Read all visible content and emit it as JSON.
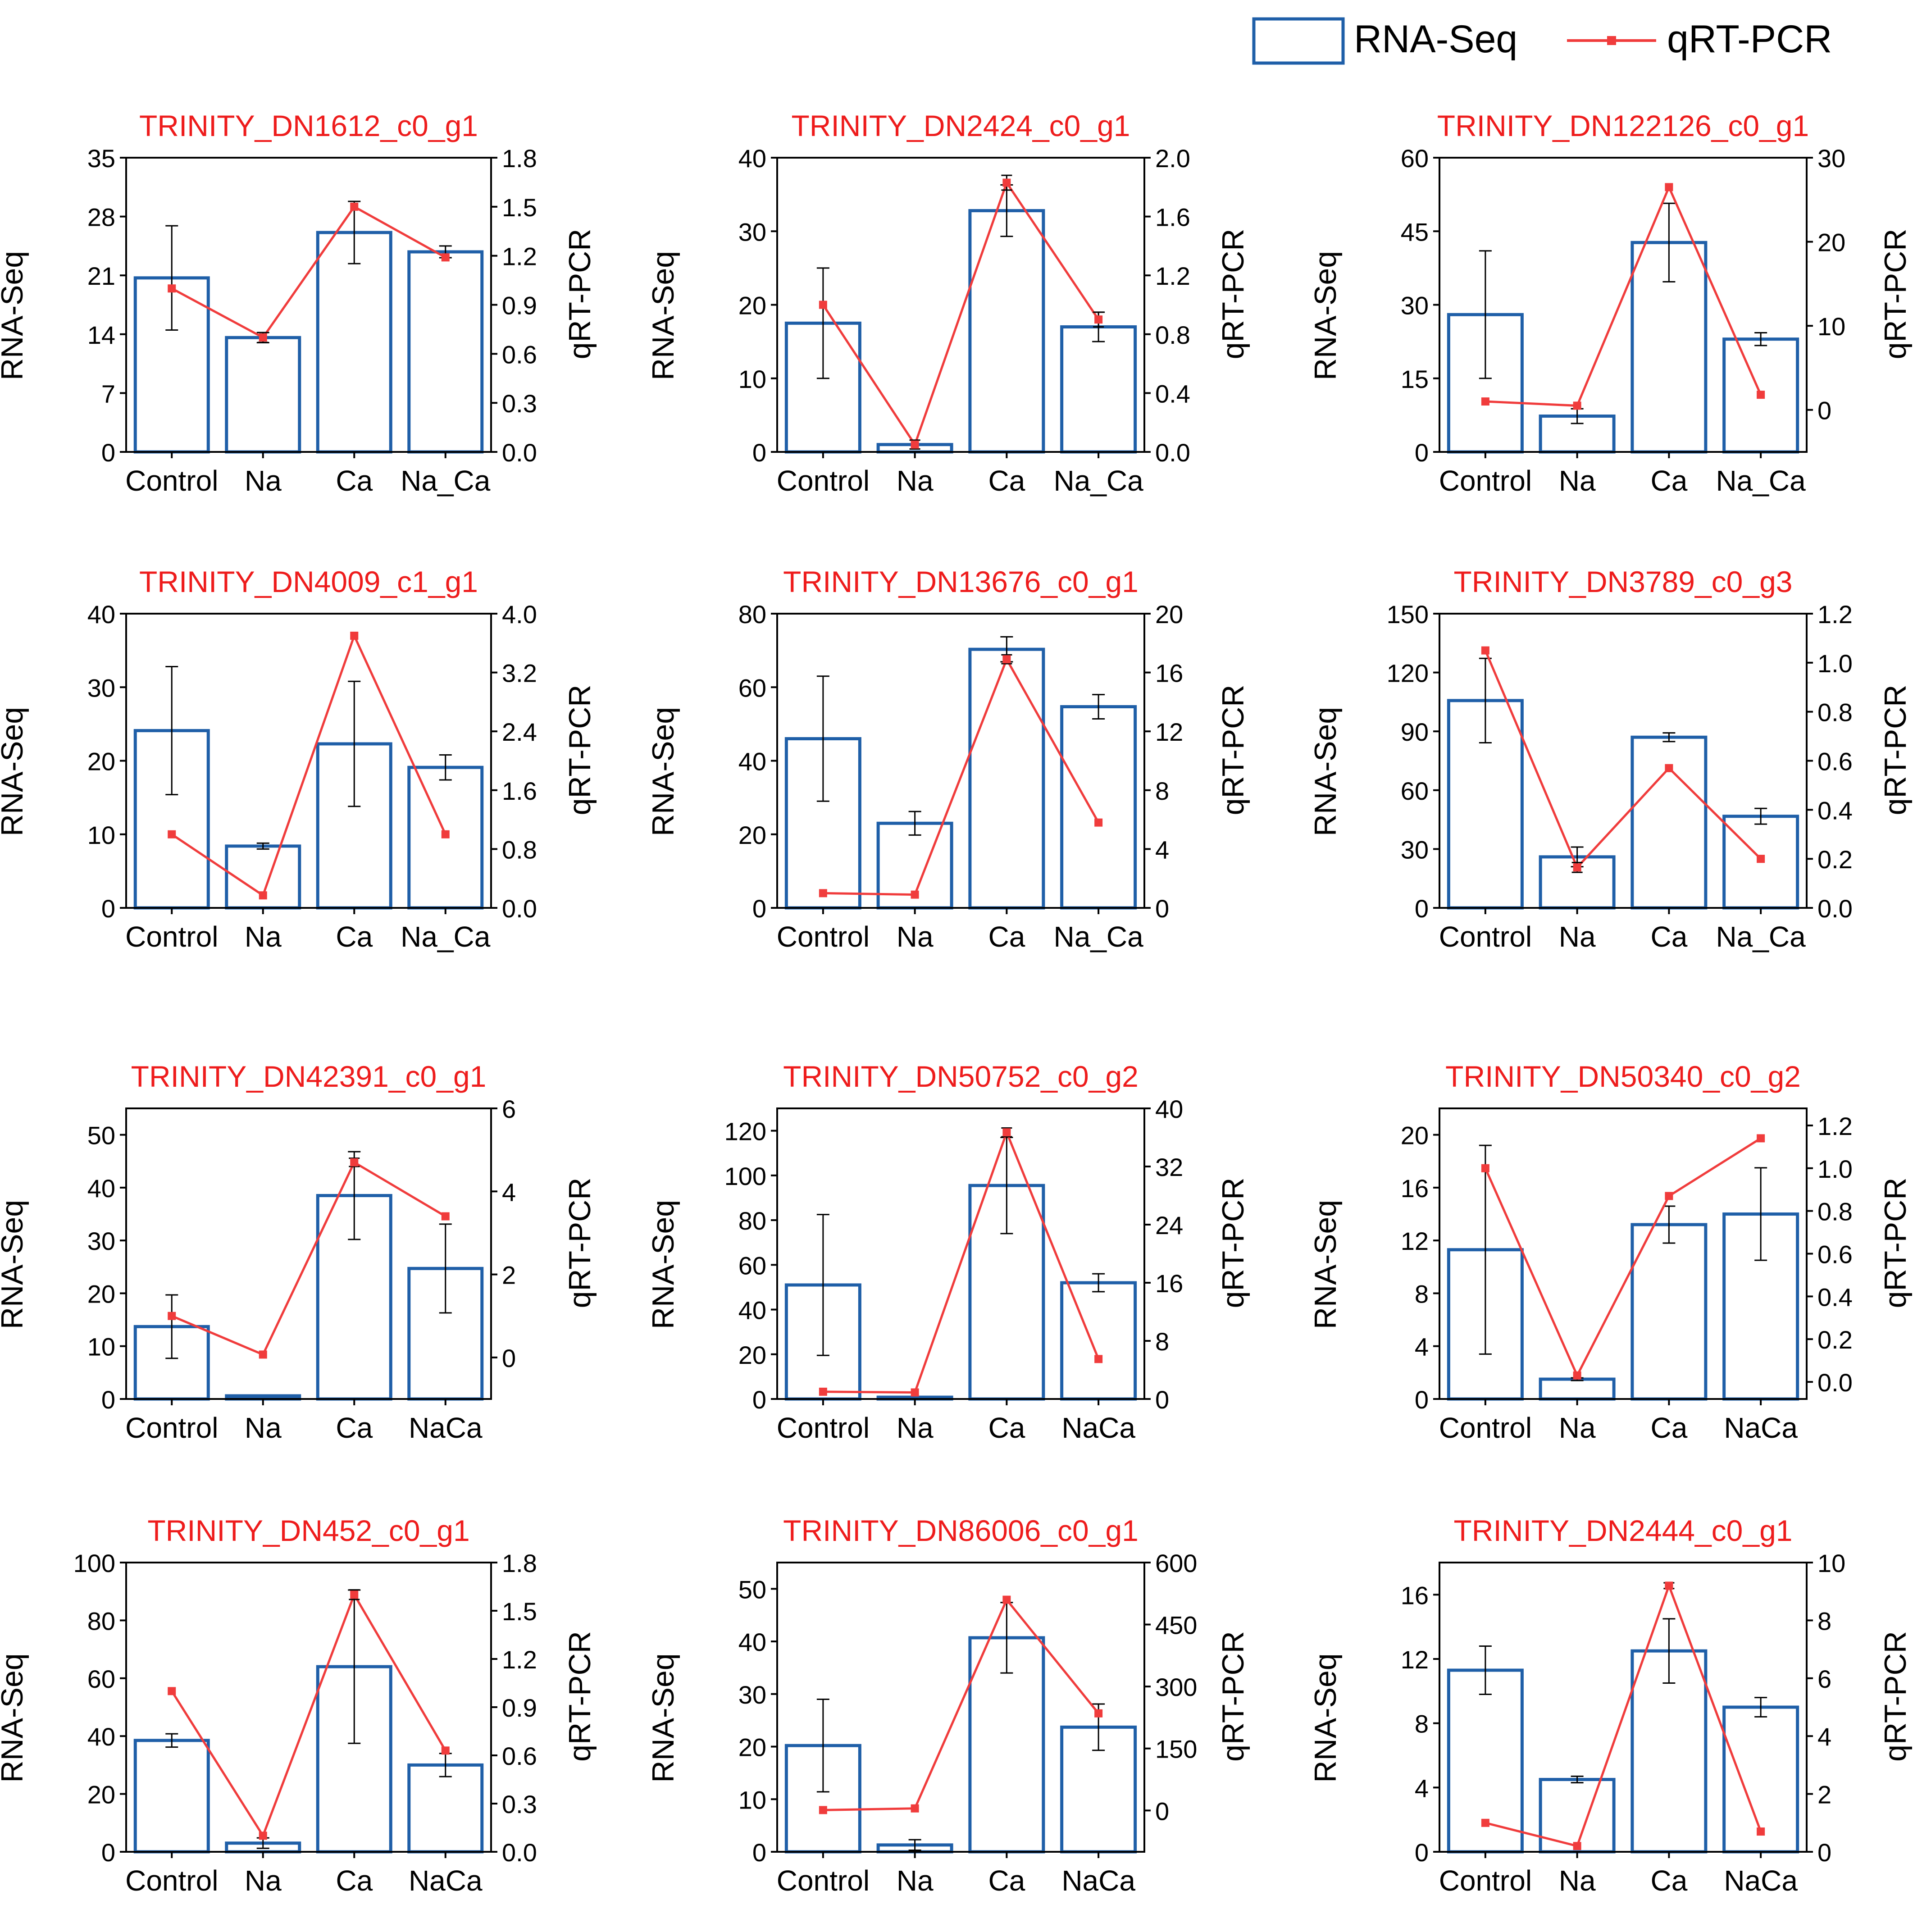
{
  "legend": {
    "bar_label": "RNA-Seq",
    "line_label": "qRT-PCR"
  },
  "colors": {
    "bar_stroke": "#1f5fa8",
    "line": "#f03c3c",
    "title": "#ee1c1c",
    "axis": "#000000"
  },
  "chart_data": [
    {
      "type": "bar+line",
      "title": "TRINITY_DN1612_c0_g1",
      "categories": [
        "Control",
        "Na",
        "Ca",
        "Na_Ca"
      ],
      "y_left": {
        "label": "RNA-Seq",
        "range": [
          0,
          35
        ],
        "ticks": [
          "0",
          "7",
          "14",
          "21",
          "28",
          "35"
        ]
      },
      "y_right": {
        "label": "qRT-PCR",
        "range": [
          0,
          1.8
        ],
        "ticks": [
          "0.0",
          "0.3",
          "0.6",
          "0.9",
          "1.2",
          "1.5",
          "1.8"
        ]
      },
      "rnaseq": {
        "values": [
          20.7,
          13.6,
          26.1,
          23.8
        ],
        "errors": [
          6.2,
          0.6,
          3.7,
          0.7
        ]
      },
      "qrtpcr": {
        "values": [
          1.0,
          0.7,
          1.5,
          1.19
        ],
        "errors": [
          0,
          0.03,
          0,
          0
        ]
      }
    },
    {
      "type": "bar+line",
      "title": "TRINITY_DN2424_c0_g1",
      "categories": [
        "Control",
        "Na",
        "Ca",
        "Na_Ca"
      ],
      "y_left": {
        "label": "RNA-Seq",
        "range": [
          0,
          40
        ],
        "ticks": [
          "0",
          "10",
          "20",
          "30",
          "40"
        ]
      },
      "y_right": {
        "label": "qRT-PCR",
        "range": [
          0,
          2.0
        ],
        "ticks": [
          "0.0",
          "0.4",
          "0.8",
          "1.2",
          "1.6",
          "2.0"
        ]
      },
      "rnaseq": {
        "values": [
          17.5,
          1.0,
          32.8,
          17.0
        ],
        "errors": [
          7.5,
          0,
          3.5,
          2.0
        ]
      },
      "qrtpcr": {
        "values": [
          1.0,
          0.05,
          1.83,
          0.9
        ],
        "errors": [
          0,
          0.03,
          0.05,
          0.05
        ]
      }
    },
    {
      "type": "bar+line",
      "title": "TRINITY_DN122126_c0_g1",
      "categories": [
        "Control",
        "Na",
        "Ca",
        "Na_Ca"
      ],
      "y_left": {
        "label": "RNA-Seq",
        "range": [
          0,
          60
        ],
        "ticks": [
          "0",
          "15",
          "30",
          "45",
          "60"
        ]
      },
      "y_right": {
        "label": "qRT-PCR",
        "range": [
          -5,
          30
        ],
        "ticks": [
          "0",
          "10",
          "20",
          "30"
        ]
      },
      "rnaseq": {
        "values": [
          28.0,
          7.3,
          42.7,
          23.0
        ],
        "errors": [
          13,
          1.5,
          8,
          1.3
        ]
      },
      "qrtpcr": {
        "values": [
          1.0,
          0.5,
          26.5,
          1.8
        ],
        "errors": [
          0,
          0,
          0,
          0
        ]
      }
    },
    {
      "type": "bar+line",
      "title": "TRINITY_DN4009_c1_g1",
      "categories": [
        "Control",
        "Na",
        "Ca",
        "Na_Ca"
      ],
      "y_left": {
        "label": "RNA-Seq",
        "range": [
          0,
          40
        ],
        "ticks": [
          "0",
          "10",
          "20",
          "30",
          "40"
        ]
      },
      "y_right": {
        "label": "qRT-PCR",
        "range": [
          0,
          4.0
        ],
        "ticks": [
          "0.0",
          "0.8",
          "1.6",
          "2.4",
          "3.2",
          "4.0"
        ]
      },
      "rnaseq": {
        "values": [
          24.1,
          8.4,
          22.3,
          19.1
        ],
        "errors": [
          8.7,
          0.4,
          8.5,
          1.7
        ]
      },
      "qrtpcr": {
        "values": [
          1.0,
          0.17,
          3.7,
          1.0
        ],
        "errors": [
          0,
          0,
          0,
          0
        ]
      }
    },
    {
      "type": "bar+line",
      "title": "TRINITY_DN13676_c0_g1",
      "categories": [
        "Control",
        "Na",
        "Ca",
        "Na_Ca"
      ],
      "y_left": {
        "label": "RNA-Seq",
        "range": [
          0,
          80
        ],
        "ticks": [
          "0",
          "20",
          "40",
          "60",
          "80"
        ]
      },
      "y_right": {
        "label": "qRT-PCR",
        "range": [
          0,
          20
        ],
        "ticks": [
          "0",
          "4",
          "8",
          "12",
          "16",
          "20"
        ]
      },
      "rnaseq": {
        "values": [
          46.0,
          23.0,
          70.3,
          54.7
        ],
        "errors": [
          17,
          3.2,
          3.4,
          3.3
        ]
      },
      "qrtpcr": {
        "values": [
          1.0,
          0.9,
          16.9,
          5.8
        ],
        "errors": [
          0,
          0,
          0.3,
          0
        ]
      }
    },
    {
      "type": "bar+line",
      "title": "TRINITY_DN3789_c0_g3",
      "categories": [
        "Control",
        "Na",
        "Ca",
        "Na_Ca"
      ],
      "y_left": {
        "label": "RNA-Seq",
        "range": [
          0,
          150
        ],
        "ticks": [
          "0",
          "30",
          "60",
          "90",
          "120",
          "150"
        ]
      },
      "y_right": {
        "label": "qRT-PCR",
        "range": [
          0,
          1.2
        ],
        "ticks": [
          "0.0",
          "0.2",
          "0.4",
          "0.6",
          "0.8",
          "1.0",
          "1.2"
        ]
      },
      "rnaseq": {
        "values": [
          105.7,
          26.0,
          87.0,
          46.7
        ],
        "errors": [
          21.5,
          5.0,
          2.2,
          4.0
        ]
      },
      "qrtpcr": {
        "values": [
          1.05,
          0.165,
          0.57,
          0.2
        ],
        "errors": [
          0,
          0.02,
          0,
          0
        ]
      }
    },
    {
      "type": "bar+line",
      "title": "TRINITY_DN42391_c0_g1",
      "categories": [
        "Control",
        "Na",
        "Ca",
        "NaCa"
      ],
      "y_left": {
        "label": "RNA-Seq",
        "range": [
          0,
          55
        ],
        "ticks": [
          "0",
          "10",
          "20",
          "30",
          "40",
          "50"
        ]
      },
      "y_right": {
        "label": "qRT-PCR",
        "range": [
          -1,
          6
        ],
        "ticks": [
          "0",
          "2",
          "4",
          "6"
        ]
      },
      "rnaseq": {
        "values": [
          13.7,
          0.6,
          38.5,
          24.7
        ],
        "errors": [
          6.0,
          0,
          8.3,
          8.4
        ]
      },
      "qrtpcr": {
        "values": [
          1.0,
          0.07,
          4.7,
          3.4
        ],
        "errors": [
          0,
          0,
          0.1,
          0
        ]
      }
    },
    {
      "type": "bar+line",
      "title": "TRINITY_DN50752_c0_g2",
      "categories": [
        "Control",
        "Na",
        "Ca",
        "NaCa"
      ],
      "y_left": {
        "label": "RNA-Seq",
        "range": [
          0,
          130
        ],
        "ticks": [
          "0",
          "20",
          "40",
          "60",
          "80",
          "100",
          "120"
        ]
      },
      "y_right": {
        "label": "qRT-PCR",
        "range": [
          0,
          40
        ],
        "ticks": [
          "0",
          "8",
          "16",
          "24",
          "32",
          "40"
        ]
      },
      "rnaseq": {
        "values": [
          51.0,
          0.8,
          95.5,
          52.0
        ],
        "errors": [
          31.5,
          0,
          21.5,
          4.0
        ]
      },
      "qrtpcr": {
        "values": [
          1.0,
          0.9,
          36.7,
          5.5
        ],
        "errors": [
          0,
          0,
          0.6,
          0
        ]
      }
    },
    {
      "type": "bar+line",
      "title": "TRINITY_DN50340_c0_g2",
      "categories": [
        "Control",
        "Na",
        "Ca",
        "NaCa"
      ],
      "y_left": {
        "label": "RNA-Seq",
        "range": [
          0,
          22
        ],
        "ticks": [
          "0",
          "4",
          "8",
          "12",
          "16",
          "20"
        ]
      },
      "y_right": {
        "label": "qRT-PCR",
        "range": [
          -0.08,
          1.28
        ],
        "ticks": [
          "0.0",
          "0.2",
          "0.4",
          "0.6",
          "0.8",
          "1.0",
          "1.2"
        ]
      },
      "rnaseq": {
        "values": [
          11.3,
          1.5,
          13.2,
          14.0
        ],
        "errors": [
          7.9,
          0.1,
          1.4,
          3.5
        ]
      },
      "qrtpcr": {
        "values": [
          1.0,
          0.03,
          0.87,
          1.14
        ],
        "errors": [
          0,
          0,
          0,
          0
        ]
      }
    },
    {
      "type": "bar+line",
      "title": "TRINITY_DN452_c0_g1",
      "categories": [
        "Control",
        "Na",
        "Ca",
        "NaCa"
      ],
      "y_left": {
        "label": "RNA-Seq",
        "range": [
          0,
          100
        ],
        "ticks": [
          "0",
          "20",
          "40",
          "60",
          "80",
          "100"
        ]
      },
      "y_right": {
        "label": "qRT-PCR",
        "range": [
          0,
          1.8
        ],
        "ticks": [
          "0.0",
          "0.3",
          "0.6",
          "0.9",
          "1.2",
          "1.5",
          "1.8"
        ]
      },
      "rnaseq": {
        "values": [
          38.5,
          3.0,
          64.0,
          30.0
        ],
        "errors": [
          2.3,
          1.8,
          26.5,
          4.0
        ]
      },
      "qrtpcr": {
        "values": [
          1.0,
          0.1,
          1.6,
          0.63
        ],
        "errors": [
          0,
          0,
          0.03,
          0
        ]
      }
    },
    {
      "type": "bar+line",
      "title": "TRINITY_DN86006_c0_g1",
      "categories": [
        "Control",
        "Na",
        "Ca",
        "NaCa"
      ],
      "y_left": {
        "label": "RNA-Seq",
        "range": [
          0,
          55
        ],
        "ticks": [
          "0",
          "10",
          "20",
          "30",
          "40",
          "50"
        ]
      },
      "y_right": {
        "label": "qRT-PCR",
        "range": [
          -100,
          600
        ],
        "ticks": [
          "0",
          "150",
          "300",
          "450",
          "600"
        ]
      },
      "rnaseq": {
        "values": [
          20.2,
          1.3,
          40.7,
          23.7
        ],
        "errors": [
          8.8,
          1.0,
          6.7,
          4.4
        ]
      },
      "qrtpcr": {
        "values": [
          1.0,
          5.0,
          510.0,
          235.0
        ],
        "errors": [
          0,
          0,
          0,
          0
        ]
      }
    },
    {
      "type": "bar+line",
      "title": "TRINITY_DN2444_c0_g1",
      "categories": [
        "Control",
        "Na",
        "Ca",
        "NaCa"
      ],
      "y_left": {
        "label": "RNA-Seq",
        "range": [
          0,
          18
        ],
        "ticks": [
          "0",
          "4",
          "8",
          "12",
          "16"
        ]
      },
      "y_right": {
        "label": "qRT-PCR",
        "range": [
          0,
          10
        ],
        "ticks": [
          "0",
          "2",
          "4",
          "6",
          "8",
          "10"
        ]
      },
      "rnaseq": {
        "values": [
          11.3,
          4.5,
          12.5,
          9.0
        ],
        "errors": [
          1.5,
          0.2,
          2.0,
          0.6
        ]
      },
      "qrtpcr": {
        "values": [
          1.0,
          0.2,
          9.2,
          0.7
        ],
        "errors": [
          0,
          0,
          0.1,
          0
        ]
      }
    }
  ]
}
